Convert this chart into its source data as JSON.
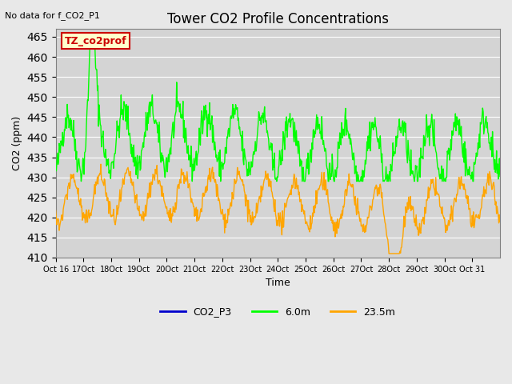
{
  "title": "Tower CO2 Profile Concentrations",
  "subtitle": "No data for f_CO2_P1",
  "xlabel": "Time",
  "ylabel": "CO2 (ppm)",
  "ylim": [
    410,
    467
  ],
  "yticks": [
    410,
    415,
    420,
    425,
    430,
    435,
    440,
    445,
    450,
    455,
    460,
    465
  ],
  "xtick_labels": [
    "Oct 16",
    "17Oct",
    "18Oct",
    "19Oct",
    "20Oct",
    "21Oct",
    "22Oct",
    "23Oct",
    "24Oct",
    "25Oct",
    "26Oct",
    "27Oct",
    "28Oct",
    "29Oct",
    "30Oct",
    "Oct 31"
  ],
  "bg_color": "#e8e8e8",
  "plot_bg": "#d4d4d4",
  "line_color_green": "#00ff00",
  "line_color_orange": "#ffa500",
  "line_color_blue": "#0000cc",
  "legend_labels": [
    "CO2_P3",
    "6.0m",
    "23.5m"
  ],
  "box_label": "TZ_co2prof",
  "box_facecolor": "#ffffcc",
  "box_edgecolor": "#cc0000",
  "figsize": [
    6.4,
    4.8
  ],
  "dpi": 100
}
